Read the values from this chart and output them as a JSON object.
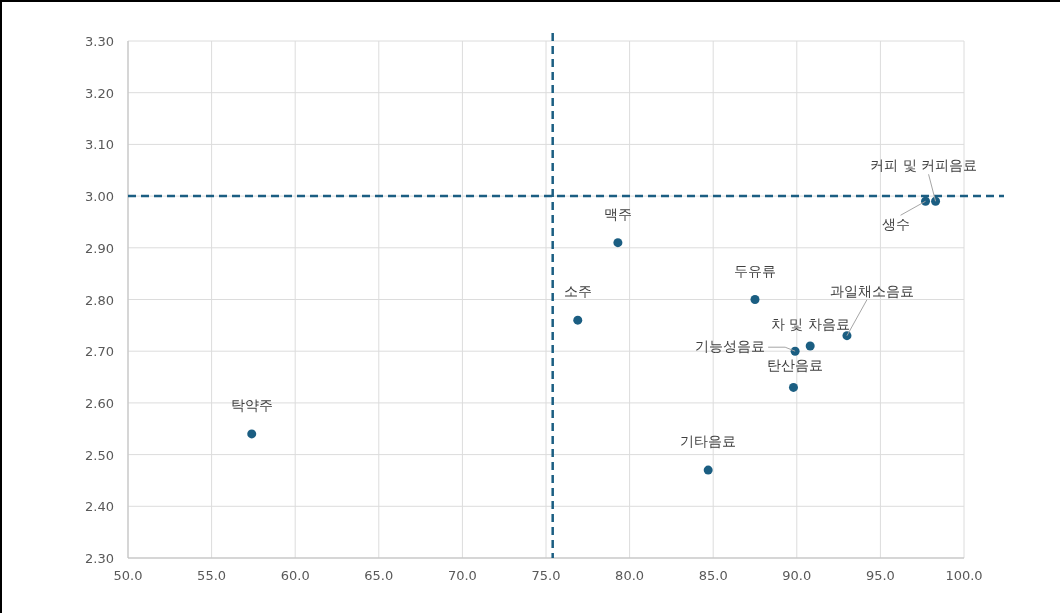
{
  "chart_data": {
    "type": "scatter",
    "x": [
      57.4,
      84.7,
      76.9,
      79.3,
      87.5,
      89.9,
      90.8,
      89.8,
      93.0,
      97.7,
      98.3
    ],
    "values": [
      2.54,
      2.47,
      2.76,
      2.91,
      2.8,
      2.7,
      2.71,
      2.63,
      2.73,
      2.99,
      2.99
    ],
    "color": "#1b5e82",
    "marker": "circle",
    "grid": true,
    "xlim": [
      50,
      100
    ],
    "ylim": [
      2.3,
      3.3
    ],
    "xticks": [
      {
        "value": 50,
        "label": "50.0"
      },
      {
        "value": 55,
        "label": "55.0"
      },
      {
        "value": 60,
        "label": "60.0"
      },
      {
        "value": 65,
        "label": "65.0"
      },
      {
        "value": 70,
        "label": "70.0"
      },
      {
        "value": 75,
        "label": "75.0"
      },
      {
        "value": 80,
        "label": "80.0"
      },
      {
        "value": 85,
        "label": "85.0"
      },
      {
        "value": 90,
        "label": "90.0"
      },
      {
        "value": 95,
        "label": "95.0"
      },
      {
        "value": 100,
        "label": "100.0"
      }
    ],
    "yticks": [
      {
        "value": 2.3,
        "label": "2.30"
      },
      {
        "value": 2.4,
        "label": "2.40"
      },
      {
        "value": 2.5,
        "label": "2.50"
      },
      {
        "value": 2.6,
        "label": "2.60"
      },
      {
        "value": 2.7,
        "label": "2.70"
      },
      {
        "value": 2.8,
        "label": "2.80"
      },
      {
        "value": 2.9,
        "label": "2.90"
      },
      {
        "value": 3.0,
        "label": "3.00"
      },
      {
        "value": 3.1,
        "label": "3.10"
      },
      {
        "value": 3.2,
        "label": "3.20"
      },
      {
        "value": 3.3,
        "label": "3.30"
      }
    ],
    "ref_lines": [
      {
        "axis": "x",
        "value": 75.4,
        "color": "#1b5e82",
        "line_style": "dashed"
      },
      {
        "axis": "y",
        "value": 3.0,
        "color": "#1b5e82",
        "line_style": "dashed"
      }
    ],
    "annotations": [
      {
        "text": "탁약주",
        "x": 57.4,
        "y": 2.54
      },
      {
        "text": "기타음료",
        "x": 84.7,
        "y": 2.47
      },
      {
        "text": "소주",
        "x": 76.9,
        "y": 2.76
      },
      {
        "text": "맥주",
        "x": 79.3,
        "y": 2.91
      },
      {
        "text": "두유류",
        "x": 87.5,
        "y": 2.8
      },
      {
        "text": "기능성음료",
        "x": 89.9,
        "y": 2.7
      },
      {
        "text": "차 및 차음료",
        "x": 90.8,
        "y": 2.71
      },
      {
        "text": "탄산음료",
        "x": 89.8,
        "y": 2.63
      },
      {
        "text": "과일채소음료",
        "x": 93.0,
        "y": 2.73
      },
      {
        "text": "생수",
        "x": 97.7,
        "y": 2.99
      },
      {
        "text": "커피 및 커피음료",
        "x": 98.3,
        "y": 2.99
      }
    ]
  }
}
